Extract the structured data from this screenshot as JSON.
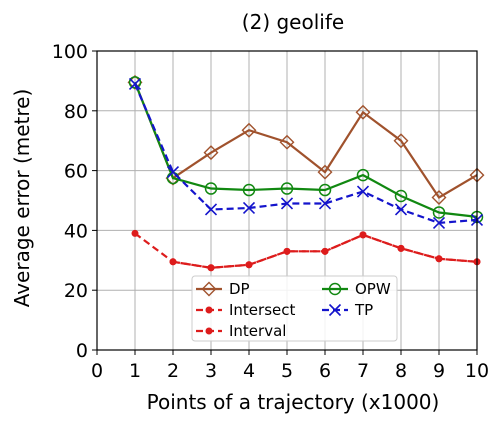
{
  "chart_data": {
    "type": "line",
    "title": "(2) geolife",
    "xlabel": "Points of a trajectory (x1000)",
    "ylabel": "Average error (metre)",
    "xlim": [
      0,
      10
    ],
    "ylim": [
      0,
      100
    ],
    "xticks": [
      "0",
      "1",
      "2",
      "3",
      "4",
      "5",
      "6",
      "7",
      "8",
      "9",
      "10"
    ],
    "yticks": [
      "0",
      "20",
      "40",
      "60",
      "80",
      "100"
    ],
    "grid": true,
    "legend_position": "lower-center",
    "x": [
      1,
      2,
      3,
      4,
      5,
      6,
      7,
      8,
      9,
      10
    ],
    "series": [
      {
        "name": "DP",
        "color": "#a0522d",
        "marker": "diamond",
        "line": "solid",
        "values": [
          89.5,
          57.5,
          66,
          73.5,
          69.5,
          59.5,
          79.5,
          70,
          51,
          58.5
        ]
      },
      {
        "name": "Intersect",
        "color": "#dd1c1c",
        "marker": "dot",
        "line": "dashed",
        "values": [
          null,
          29.5,
          27.5,
          28.5,
          33,
          33,
          38.5,
          34,
          30.5,
          29.5
        ]
      },
      {
        "name": "Interval",
        "color": "#dd1c1c",
        "marker": "dot",
        "line": "dashed",
        "values": [
          39,
          29.5,
          27.5,
          28.5,
          33,
          33,
          38.5,
          34,
          30.5,
          29.5
        ]
      },
      {
        "name": "OPW",
        "color": "#118811",
        "marker": "circle",
        "line": "solid",
        "values": [
          89.5,
          57.5,
          54,
          53.5,
          54,
          53.5,
          58.5,
          51.5,
          46,
          44.5
        ]
      },
      {
        "name": "TP",
        "color": "#1414cc",
        "marker": "x",
        "line": "dashed",
        "values": [
          89,
          59.5,
          47,
          47.5,
          49,
          49,
          53,
          47,
          42.5,
          43.5
        ]
      }
    ]
  }
}
